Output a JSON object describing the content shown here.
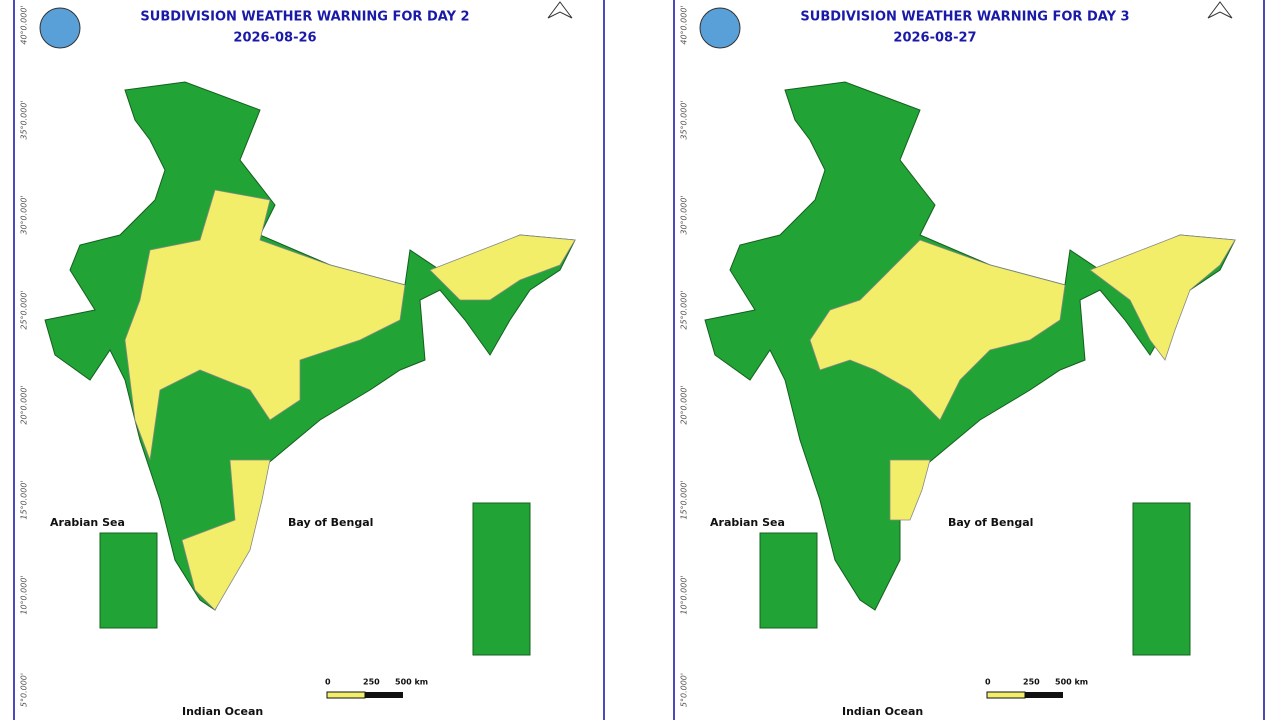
{
  "panels": [
    {
      "title": "SUBDIVISION WEATHER WARNING FOR DAY 2",
      "date": "2026-08-26",
      "arabian_sea": "Arabian Sea",
      "bay_of_bengal": "Bay of Bengal",
      "indian_ocean": "Indian Ocean",
      "scale": [
        "0",
        "250",
        "500 km"
      ],
      "latitudes": [
        "40°0.000'",
        "35°0.000'",
        "30°0.000'",
        "25°0.000'",
        "20°0.000'",
        "15°0.000'",
        "10°0.000'",
        "5°0.000'"
      ]
    },
    {
      "title": "SUBDIVISION WEATHER WARNING FOR DAY 3",
      "date": "2026-08-27",
      "arabian_sea": "Arabian Sea",
      "bay_of_bengal": "Bay of Bengal",
      "indian_ocean": "Indian Ocean",
      "scale": [
        "0",
        "250",
        "500 km"
      ],
      "latitudes": [
        "40°0.000'",
        "35°0.000'",
        "30°0.000'",
        "25°0.000'",
        "20°0.000'",
        "15°0.000'",
        "10°0.000'",
        "5°0.000'"
      ]
    }
  ]
}
